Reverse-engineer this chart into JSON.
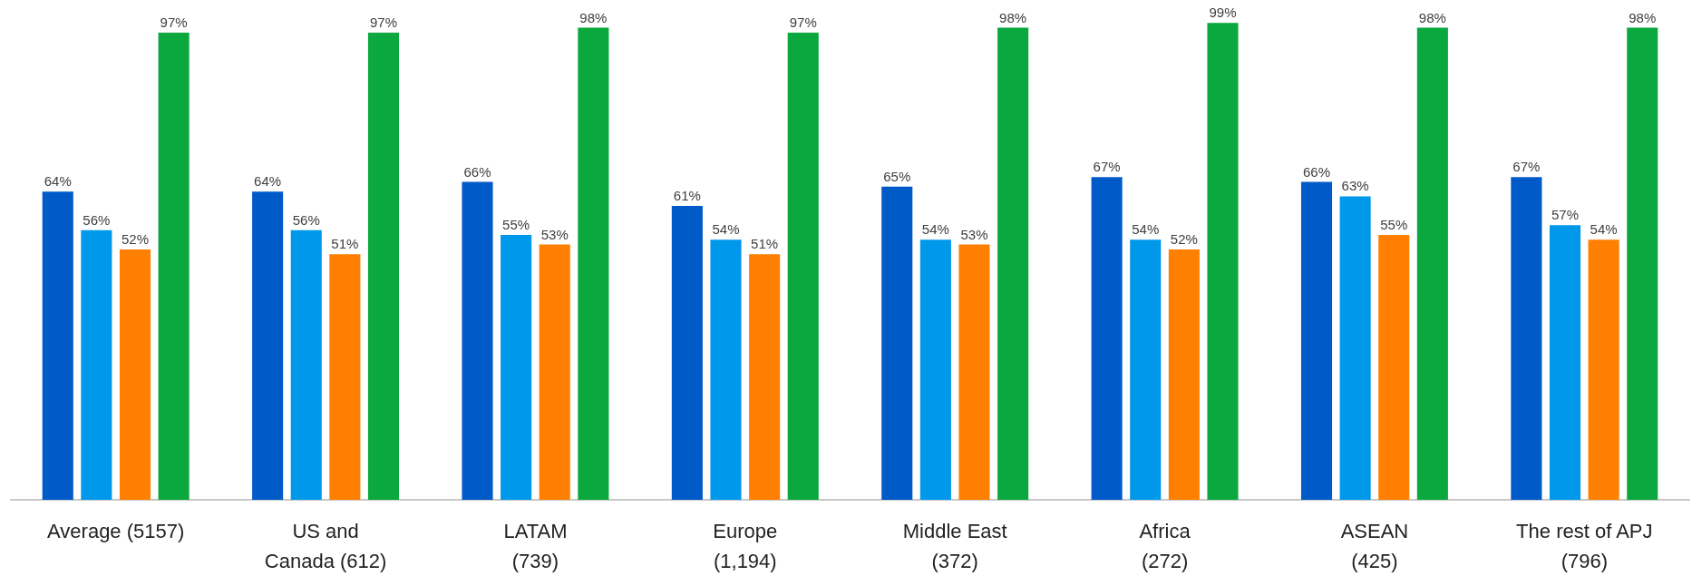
{
  "chart_data": {
    "type": "bar",
    "categories": [
      "Average (5157)",
      "US and\nCanada (612)",
      "LATAM\n(739)",
      "Europe\n(1,194)",
      "Middle East\n(372)",
      "Africa\n(272)",
      "ASEAN\n(425)",
      "The rest of APJ\n(796)"
    ],
    "series": [
      {
        "color": "#005ac8",
        "values": [
          64,
          64,
          66,
          61,
          65,
          67,
          66,
          67
        ],
        "value_labels": [
          "64%",
          "64%",
          "66%",
          "61%",
          "65%",
          "67%",
          "66%",
          "67%"
        ]
      },
      {
        "color": "#0098eb",
        "values": [
          56,
          56,
          55,
          54,
          54,
          54,
          63,
          57
        ],
        "value_labels": [
          "56%",
          "56%",
          "55%",
          "54%",
          "54%",
          "54%",
          "63%",
          "57%"
        ]
      },
      {
        "color": "#ff7f00",
        "values": [
          52,
          51,
          53,
          51,
          53,
          52,
          55,
          54
        ],
        "value_labels": [
          "52%",
          "51%",
          "53%",
          "51%",
          "53%",
          "52%",
          "55%",
          "54%"
        ]
      },
      {
        "color": "#0aa83f",
        "values": [
          97,
          97,
          98,
          97,
          98,
          99,
          98,
          98
        ],
        "value_labels": [
          "97%",
          "97%",
          "98%",
          "97%",
          "98%",
          "99%",
          "98%",
          "98%"
        ]
      }
    ],
    "tick_labels": "x"
  }
}
